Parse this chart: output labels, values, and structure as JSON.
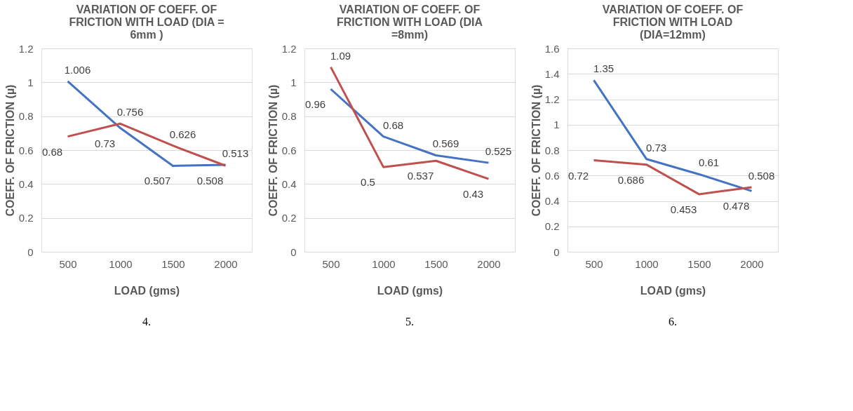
{
  "chart_data": [
    {
      "type": "line",
      "title": "VARIATION OF COEFF. OF FRICTION WITH LOAD (DIA = 6mm )",
      "xlabel": "LOAD (gms)",
      "ylabel": "COEFF. OF FRICTION (µ)",
      "categories": [
        "500",
        "1000",
        "1500",
        "2000"
      ],
      "series": [
        {
          "color": "#4472c4",
          "values": [
            1.006,
            0.73,
            0.507,
            0.513
          ]
        },
        {
          "color": "#c0504d",
          "values": [
            0.68,
            0.756,
            0.626,
            0.508
          ]
        }
      ],
      "ylim": [
        0,
        1.2
      ],
      "yticks": [
        0,
        0.2,
        0.4,
        0.6,
        0.8,
        1,
        1.2
      ],
      "grid": "y",
      "legend": false,
      "marker": "none",
      "line_style": "solid",
      "data_labels": true,
      "annotations": [
        "4."
      ]
    },
    {
      "type": "line",
      "title": "VARIATION OF COEFF. OF FRICTION WITH LOAD (DIA =8mm)",
      "xlabel": "LOAD (gms)",
      "ylabel": "COEFF. OF FRICTION (µ)",
      "categories": [
        "500",
        "1000",
        "1500",
        "2000"
      ],
      "series": [
        {
          "color": "#4472c4",
          "values": [
            0.96,
            0.68,
            0.569,
            0.525
          ]
        },
        {
          "color": "#c0504d",
          "values": [
            1.09,
            0.5,
            0.537,
            0.43
          ]
        }
      ],
      "ylim": [
        0,
        1.2
      ],
      "yticks": [
        0,
        0.2,
        0.4,
        0.6,
        0.8,
        1,
        1.2
      ],
      "grid": "y",
      "legend": false,
      "marker": "none",
      "line_style": "solid",
      "data_labels": true,
      "annotations": [
        "5."
      ]
    },
    {
      "type": "line",
      "title": "VARIATION OF COEFF. OF FRICTION WITH LOAD (DIA=12mm)",
      "xlabel": "LOAD (gms)",
      "ylabel": "COEFF. OF FRICTION (µ)",
      "categories": [
        "500",
        "1000",
        "1500",
        "2000"
      ],
      "series": [
        {
          "color": "#4472c4",
          "values": [
            1.35,
            0.73,
            0.61,
            0.478
          ]
        },
        {
          "color": "#c0504d",
          "values": [
            0.72,
            0.686,
            0.453,
            0.508
          ]
        }
      ],
      "ylim": [
        0,
        1.6
      ],
      "yticks": [
        0,
        0.2,
        0.4,
        0.6,
        0.8,
        1,
        1.2,
        1.4,
        1.6
      ],
      "grid": "y",
      "legend": false,
      "marker": "none",
      "line_style": "solid",
      "data_labels": true,
      "annotations": [
        "6."
      ]
    }
  ]
}
